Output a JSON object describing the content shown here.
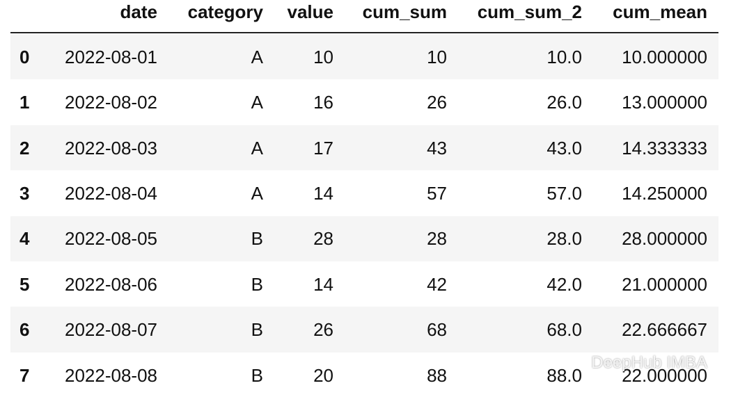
{
  "table": {
    "columns": [
      "date",
      "category",
      "value",
      "cum_sum",
      "cum_sum_2",
      "cum_mean"
    ],
    "rows": [
      {
        "index": "0",
        "cells": [
          "2022-08-01",
          "A",
          "10",
          "10",
          "10.0",
          "10.000000"
        ]
      },
      {
        "index": "1",
        "cells": [
          "2022-08-02",
          "A",
          "16",
          "26",
          "26.0",
          "13.000000"
        ]
      },
      {
        "index": "2",
        "cells": [
          "2022-08-03",
          "A",
          "17",
          "43",
          "43.0",
          "14.333333"
        ]
      },
      {
        "index": "3",
        "cells": [
          "2022-08-04",
          "A",
          "14",
          "57",
          "57.0",
          "14.250000"
        ]
      },
      {
        "index": "4",
        "cells": [
          "2022-08-05",
          "B",
          "28",
          "28",
          "28.0",
          "28.000000"
        ]
      },
      {
        "index": "5",
        "cells": [
          "2022-08-06",
          "B",
          "14",
          "42",
          "42.0",
          "21.000000"
        ]
      },
      {
        "index": "6",
        "cells": [
          "2022-08-07",
          "B",
          "26",
          "68",
          "68.0",
          "22.666667"
        ]
      },
      {
        "index": "7",
        "cells": [
          "2022-08-08",
          "B",
          "20",
          "88",
          "88.0",
          "22.000000"
        ]
      }
    ]
  },
  "watermark": "DeepHub IMBA"
}
